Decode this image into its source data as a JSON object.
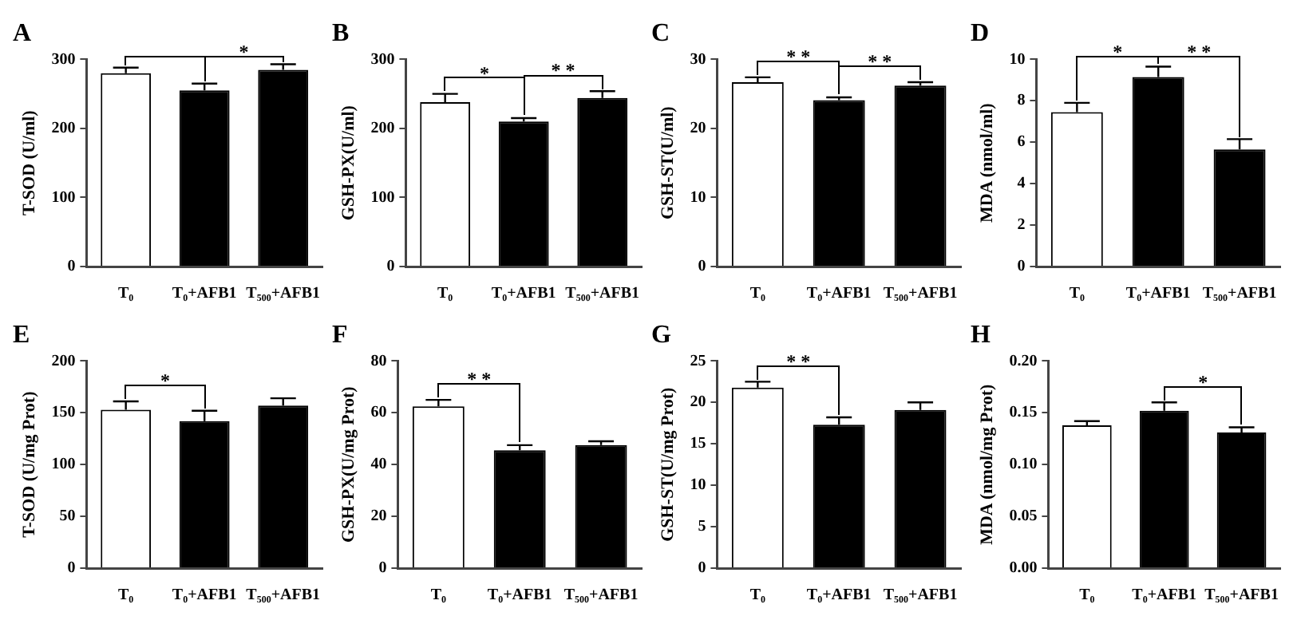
{
  "chart_data": [
    {
      "type": "bar",
      "title": "A",
      "ylabel": "T-SOD (U/ml)",
      "categories": [
        "T₀",
        "T₀+AFB1",
        "T₅₀₀+AFB1"
      ],
      "values": [
        280,
        255,
        285
      ],
      "colors": [
        "#ffffff",
        "#000000",
        "#000000"
      ],
      "errors": [
        [
          280,
          288
        ],
        [
          255,
          265
        ],
        [
          285,
          293
        ]
      ],
      "ylim": [
        0,
        300
      ],
      "yticks": [
        0,
        100,
        200,
        300
      ],
      "annotations": [
        "*"
      ]
    },
    {
      "type": "bar",
      "title": "B",
      "ylabel": "GSH-PX(U/ml)",
      "categories": [
        "T₀",
        "T₀+AFB1",
        "T₅₀₀+AFB1"
      ],
      "values": [
        238,
        210,
        244
      ],
      "colors": [
        "#ffffff",
        "#000000",
        "#000000"
      ],
      "errors": [
        [
          238,
          250
        ],
        [
          210,
          215
        ],
        [
          244,
          254
        ]
      ],
      "ylim": [
        0,
        300
      ],
      "yticks": [
        0,
        100,
        200,
        300
      ],
      "annotations": [
        "*",
        "* *"
      ]
    },
    {
      "type": "bar",
      "title": "C",
      "ylabel": "GSH-ST(U/ml)",
      "categories": [
        "T₀",
        "T₀+AFB1",
        "T₅₀₀+AFB1"
      ],
      "values": [
        26.7,
        24.1,
        26.2
      ],
      "colors": [
        "#ffffff",
        "#000000",
        "#000000"
      ],
      "errors": [
        [
          26.7,
          27.4
        ],
        [
          24.1,
          24.5
        ],
        [
          26.2,
          26.7
        ]
      ],
      "ylim": [
        0,
        30
      ],
      "yticks": [
        0,
        10,
        20,
        30
      ],
      "annotations": [
        "* *",
        "* *"
      ]
    },
    {
      "type": "bar",
      "title": "D",
      "ylabel": "MDA (nmol/ml)",
      "categories": [
        "T₀",
        "T₀+AFB1",
        "T₅₀₀+AFB1"
      ],
      "values": [
        7.45,
        9.15,
        5.65
      ],
      "colors": [
        "#ffffff",
        "#000000",
        "#000000"
      ],
      "errors": [
        [
          7.45,
          7.9
        ],
        [
          9.15,
          9.65
        ],
        [
          5.65,
          6.15
        ]
      ],
      "ylim": [
        0,
        10
      ],
      "yticks": [
        0,
        2,
        4,
        6,
        8,
        10
      ],
      "annotations": [
        "*",
        "* *"
      ]
    },
    {
      "type": "bar",
      "title": "E",
      "ylabel": "T-SOD (U/mg Prot)",
      "categories": [
        "T₀",
        "T₀+AFB1",
        "T₅₀₀+AFB1"
      ],
      "values": [
        153,
        142,
        157
      ],
      "colors": [
        "#ffffff",
        "#000000",
        "#000000"
      ],
      "errors": [
        [
          153,
          161
        ],
        [
          142,
          152
        ],
        [
          157,
          164
        ]
      ],
      "ylim": [
        0,
        200
      ],
      "yticks": [
        0,
        50,
        100,
        150,
        200
      ],
      "annotations": [
        "*"
      ]
    },
    {
      "type": "bar",
      "title": "F",
      "ylabel": "GSH-PX(U/mg Prot)",
      "categories": [
        "T₀",
        "T₀+AFB1",
        "T₅₀₀+AFB1"
      ],
      "values": [
        62.5,
        45.5,
        47.5
      ],
      "colors": [
        "#ffffff",
        "#000000",
        "#000000"
      ],
      "errors": [
        [
          62.5,
          65
        ],
        [
          45.5,
          47.5
        ],
        [
          47.5,
          49
        ]
      ],
      "ylim": [
        0,
        80
      ],
      "yticks": [
        0,
        20,
        40,
        60,
        80
      ],
      "annotations": [
        "* *"
      ]
    },
    {
      "type": "bar",
      "title": "G",
      "ylabel": "GSH-ST(U/mg Prot)",
      "categories": [
        "T₀",
        "T₀+AFB1",
        "T₅₀₀+AFB1"
      ],
      "values": [
        21.8,
        17.3,
        19.1
      ],
      "colors": [
        "#ffffff",
        "#000000",
        "#000000"
      ],
      "errors": [
        [
          21.8,
          22.5
        ],
        [
          17.3,
          18.2
        ],
        [
          19.1,
          20
        ]
      ],
      "ylim": [
        0,
        25
      ],
      "yticks": [
        0,
        5,
        10,
        15,
        20,
        25
      ],
      "annotations": [
        "* *"
      ]
    },
    {
      "type": "bar",
      "title": "H",
      "ylabel": "MDA (nmol/mg Prot)",
      "categories": [
        "T₀",
        "T₀+AFB1",
        "T₅₀₀+AFB1"
      ],
      "values": [
        0.138,
        0.152,
        0.131
      ],
      "colors": [
        "#ffffff",
        "#000000",
        "#000000"
      ],
      "errors": [
        [
          0.138,
          0.142
        ],
        [
          0.152,
          0.16
        ],
        [
          0.131,
          0.136
        ]
      ],
      "ylim": [
        0,
        0.2
      ],
      "yticks": [
        {
          "value": 0,
          "label": "0.00"
        },
        {
          "value": 0.05,
          "label": "0.05"
        },
        {
          "value": 0.1,
          "label": "0.10"
        },
        {
          "value": 0.15,
          "label": "0.15"
        },
        {
          "value": 0.2,
          "label": "0.20"
        }
      ],
      "annotations": [
        "*"
      ]
    }
  ]
}
